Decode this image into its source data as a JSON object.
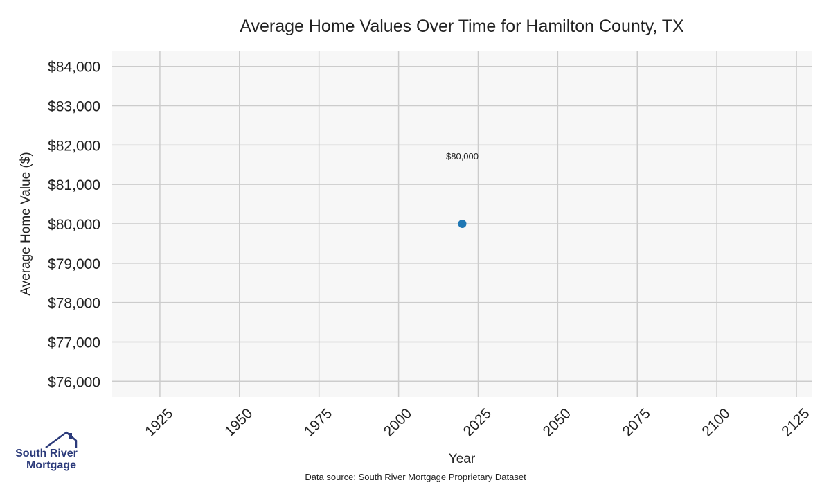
{
  "chart_data": {
    "type": "scatter",
    "title": "Average Home Values Over Time for Hamilton County, TX",
    "xlabel": "Year",
    "ylabel": "Average Home Value ($)",
    "xlim": [
      1910,
      2130
    ],
    "ylim": [
      75600,
      84400
    ],
    "x_ticks": [
      1925,
      1950,
      1975,
      2000,
      2025,
      2050,
      2075,
      2100,
      2125
    ],
    "y_ticks": [
      76000,
      77000,
      78000,
      79000,
      80000,
      81000,
      82000,
      83000,
      84000
    ],
    "y_tick_labels": [
      "$76,000",
      "$77,000",
      "$78,000",
      "$79,000",
      "$80,000",
      "$81,000",
      "$82,000",
      "$83,000",
      "$84,000"
    ],
    "grid": true,
    "series": [
      {
        "color": "#1f77b4",
        "points": [
          {
            "x": 2020,
            "y": 80000,
            "label": "$80,000"
          }
        ]
      }
    ]
  },
  "source_note": "Data source: South River Mortgage Proprietary Dataset",
  "logo": {
    "line1": "South River",
    "line2": "Mortgage",
    "color": "#2b3a7a"
  }
}
